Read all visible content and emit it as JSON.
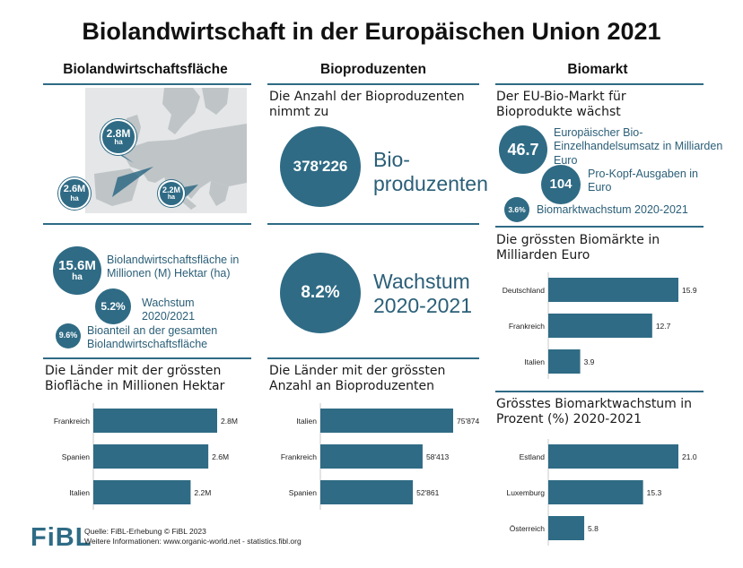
{
  "title": "Biolandwirtschaft in der Europäischen Union 2021",
  "columns": {
    "c1": "Biolandwirtschaftsfläche",
    "c2": "Bioproduzenten",
    "c3": "Biomarkt"
  },
  "map_bubbles": [
    {
      "value": "2.8M",
      "unit": "ha"
    },
    {
      "value": "2.6M",
      "unit": "ha"
    },
    {
      "value": "2.2M",
      "unit": "ha"
    }
  ],
  "area": {
    "total_value": "15.6M",
    "total_unit": "ha",
    "total_label": "Biolandwirtschaftsfläche in Millionen (M) Hektar (ha)",
    "growth_value": "5.2%",
    "growth_label": "Wachstum 2020/2021",
    "share_value": "9.6%",
    "share_label": "Bioanteil an der gesamten Biolandwirtschaftsfläche"
  },
  "producers": {
    "intro": "Die Anzahl der Bioproduzenten nimmt zu",
    "count_value": "378'226",
    "count_label": "Bio-produzenten",
    "growth_value": "8.2%",
    "growth_label": "Wachstum 2020-2021"
  },
  "market": {
    "intro": "Der EU-Bio-Markt für Bioprodukte wächst",
    "retail_value": "46.7",
    "retail_label": "Europäischer Bio-Einzelhandelsumsatz in Milliarden Euro",
    "percap_value": "104",
    "percap_label": "Pro-Kopf-Ausgaben in Euro",
    "growth_value": "3.6%",
    "growth_label": "Biomarktwachstum 2020-2021"
  },
  "colors": {
    "accent": "#2f6b85",
    "map_land": "#bfc4c7",
    "map_sea": "#e4e6e7"
  },
  "chart_data": [
    {
      "type": "bar",
      "title": "Die Länder mit der grössten Biofläche in Millionen Hektar",
      "categories": [
        "Frankreich",
        "Spanien",
        "Italien"
      ],
      "values": [
        2.8,
        2.6,
        2.2
      ],
      "value_labels": [
        "2.8M",
        "2.6M",
        "2.2M"
      ],
      "xlim": [
        0,
        2.8
      ]
    },
    {
      "type": "bar",
      "title": "Die Länder mit der grössten Anzahl an Bioproduzenten",
      "categories": [
        "Italien",
        "Frankreich",
        "Spanien"
      ],
      "values": [
        75874,
        58413,
        52861
      ],
      "value_labels": [
        "75'874",
        "58'413",
        "52'861"
      ],
      "xlim": [
        0,
        75874
      ]
    },
    {
      "type": "bar",
      "title": "Die grössten Biomärkte in Milliarden Euro",
      "categories": [
        "Deutschland",
        "Frankreich",
        "Italien"
      ],
      "values": [
        15.9,
        12.7,
        3.9
      ],
      "value_labels": [
        "15.9",
        "12.7",
        "3.9"
      ],
      "xlim": [
        0,
        15.9
      ]
    },
    {
      "type": "bar",
      "title": "Grösstes Biomarktwachstum in Prozent (%) 2020-2021",
      "categories": [
        "Estland",
        "Luxemburg",
        "Österreich"
      ],
      "values": [
        21.0,
        15.3,
        5.8
      ],
      "value_labels": [
        "21.0",
        "15.3",
        "5.8"
      ],
      "xlim": [
        0,
        21.0
      ]
    }
  ],
  "footer": {
    "logo": "FiBL",
    "source": "Quelle: FiBL-Erhebung © FiBL 2023",
    "info": "Weitere Informationen: www.organic-world.net - statistics.fibl.org"
  }
}
